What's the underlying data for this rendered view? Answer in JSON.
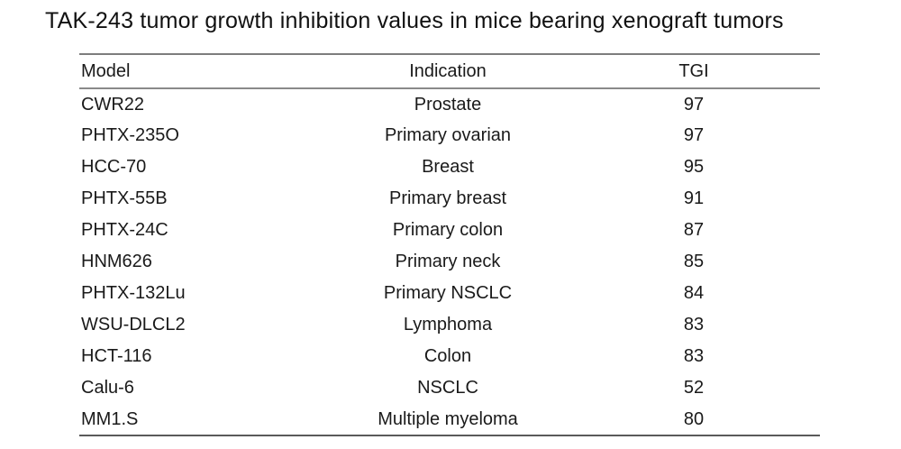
{
  "title": "TAK-243 tumor growth inhibition values in mice bearing xenograft tumors",
  "colors": {
    "background": "#ffffff",
    "text": "#1a1a1a",
    "rule_top": "#7d7d7d",
    "rule_header": "#8a8a8a",
    "rule_bottom": "#5a5a5a"
  },
  "table": {
    "headers": [
      "Model",
      "Indication",
      "TGI"
    ],
    "rows": [
      {
        "model": "CWR22",
        "indication": "Prostate",
        "tgi": "97"
      },
      {
        "model": "PHTX-235O",
        "indication": "Primary ovarian",
        "tgi": "97"
      },
      {
        "model": "HCC-70",
        "indication": "Breast",
        "tgi": "95"
      },
      {
        "model": "PHTX-55B",
        "indication": "Primary breast",
        "tgi": "91"
      },
      {
        "model": "PHTX-24C",
        "indication": "Primary colon",
        "tgi": "87"
      },
      {
        "model": "HNM626",
        "indication": "Primary neck",
        "tgi": "85"
      },
      {
        "model": "PHTX-132Lu",
        "indication": "Primary NSCLC",
        "tgi": "84"
      },
      {
        "model": "WSU-DLCL2",
        "indication": "Lymphoma",
        "tgi": "83"
      },
      {
        "model": "HCT-116",
        "indication": "Colon",
        "tgi": "83"
      },
      {
        "model": "Calu-6",
        "indication": "NSCLC",
        "tgi": "52"
      },
      {
        "model": "MM1.S",
        "indication": "Multiple myeloma",
        "tgi": "80"
      }
    ]
  },
  "chart_data": {
    "type": "table",
    "title": "TAK-243 tumor growth inhibition values in mice bearing xenograft tumors",
    "columns": [
      "Model",
      "Indication",
      "TGI"
    ],
    "categories": [
      "CWR22",
      "PHTX-235O",
      "HCC-70",
      "PHTX-55B",
      "PHTX-24C",
      "HNM626",
      "PHTX-132Lu",
      "WSU-DLCL2",
      "HCT-116",
      "Calu-6",
      "MM1.S"
    ],
    "indications": [
      "Prostate",
      "Primary ovarian",
      "Breast",
      "Primary breast",
      "Primary colon",
      "Primary neck",
      "Primary NSCLC",
      "Lymphoma",
      "Colon",
      "NSCLC",
      "Multiple myeloma"
    ],
    "values": [
      97,
      97,
      95,
      91,
      87,
      85,
      84,
      83,
      83,
      52,
      80
    ]
  }
}
